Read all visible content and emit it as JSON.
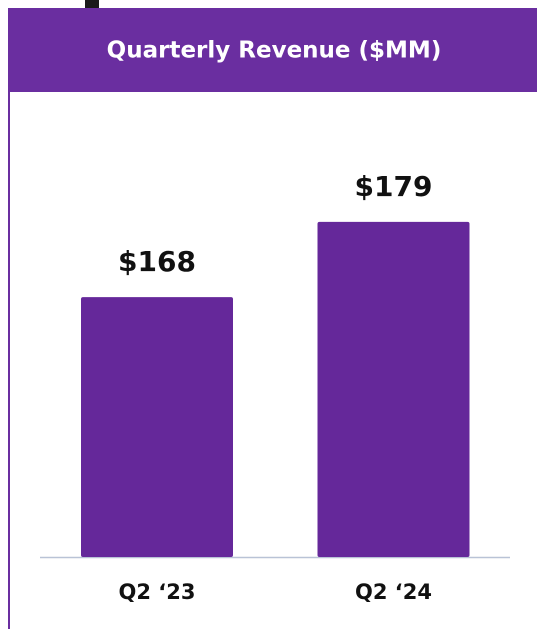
{
  "chart_data": {
    "type": "bar",
    "title": "Quarterly Revenue ($MM)",
    "categories": [
      "Q2 ‘23",
      "Q2 ‘24"
    ],
    "values": [
      168,
      179
    ],
    "value_labels": [
      "$168",
      "$179"
    ],
    "color": "#65289a",
    "ylim": [
      130,
      180
    ]
  }
}
